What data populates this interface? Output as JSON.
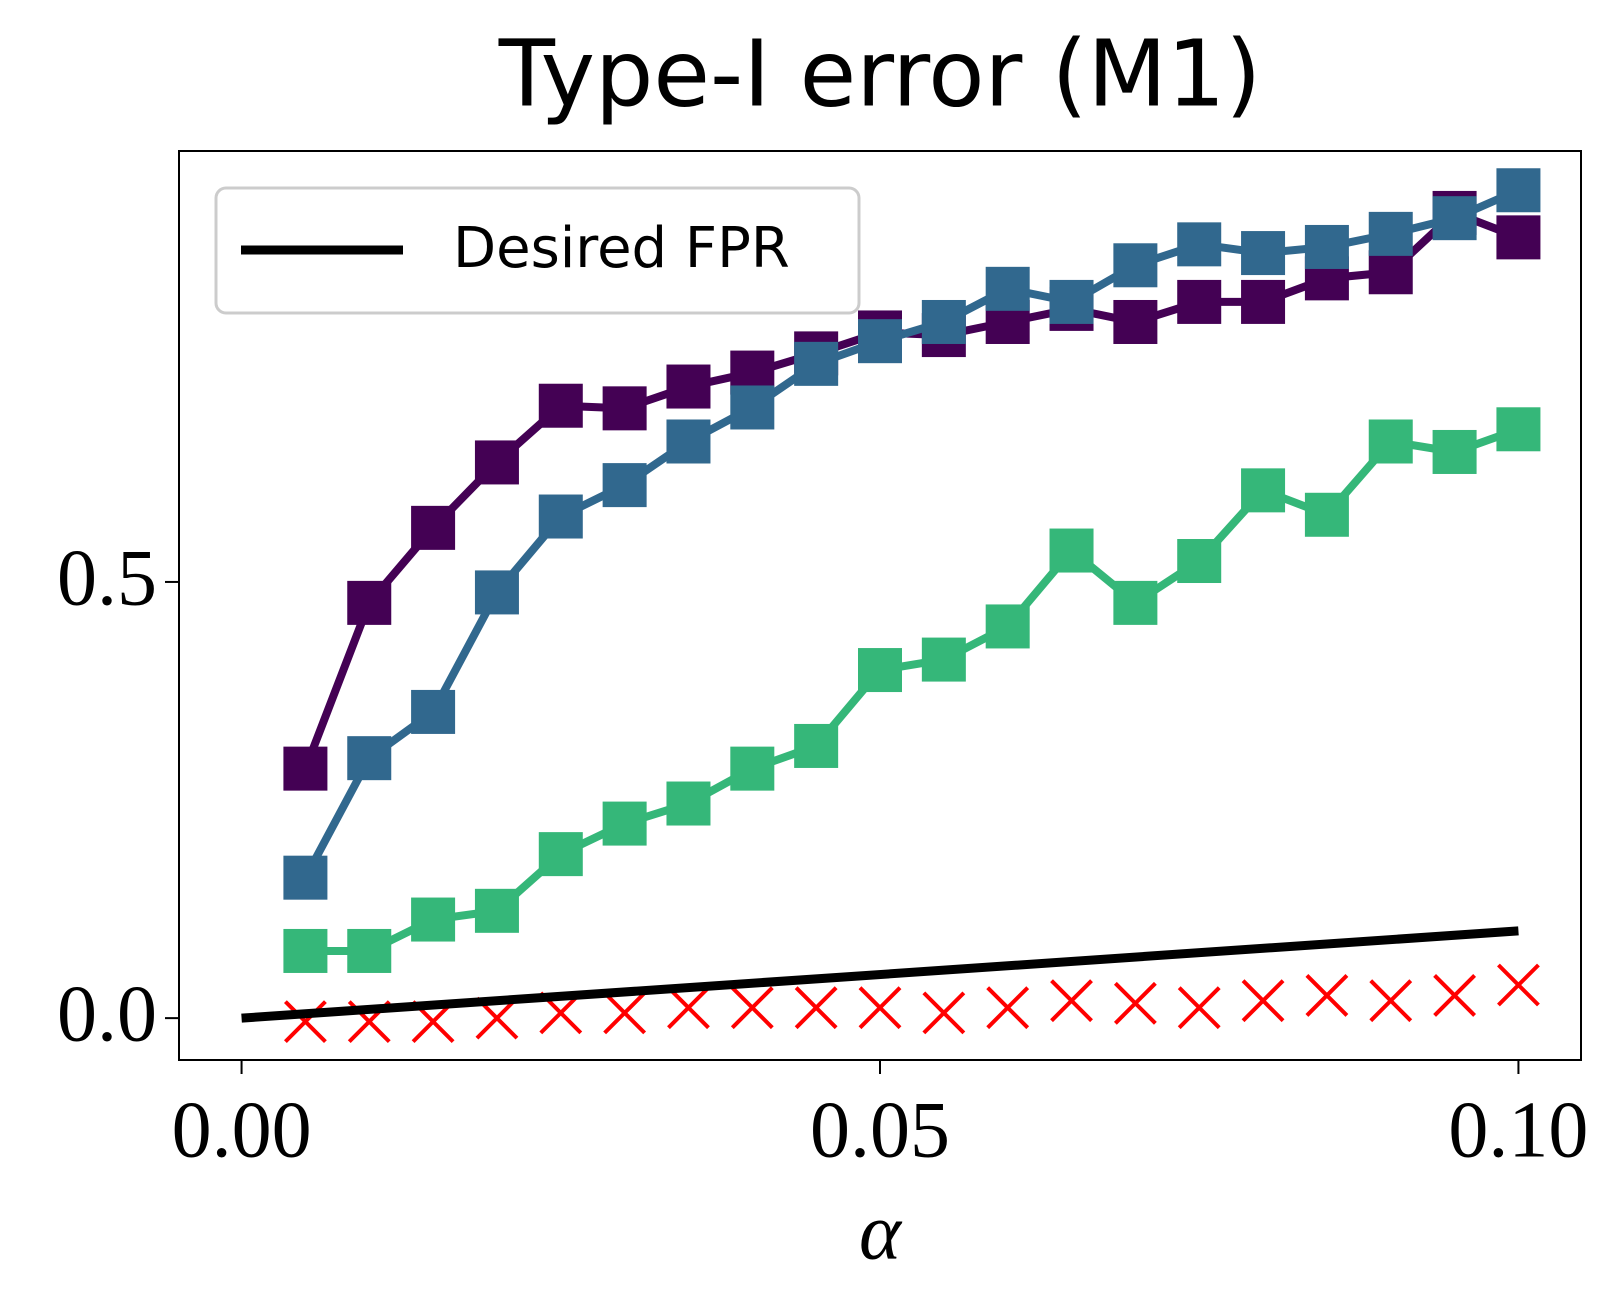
{
  "chart_data": {
    "type": "line",
    "title": "Type-I error (M1)",
    "xlabel": "α",
    "x": [
      0.005,
      0.01,
      0.015,
      0.02,
      0.025,
      0.03,
      0.035,
      0.04,
      0.045,
      0.05,
      0.055,
      0.06,
      0.065,
      0.07,
      0.075,
      0.08,
      0.085,
      0.09,
      0.095,
      0.1
    ],
    "series": [
      {
        "color": "#440154",
        "marker": "square",
        "line": true,
        "values": [
          0.286,
          0.476,
          0.562,
          0.637,
          0.702,
          0.699,
          0.724,
          0.74,
          0.762,
          0.786,
          0.783,
          0.798,
          0.813,
          0.798,
          0.821,
          0.821,
          0.848,
          0.855,
          0.923,
          0.895
        ]
      },
      {
        "color": "#31688e",
        "marker": "square",
        "line": true,
        "values": [
          0.161,
          0.298,
          0.351,
          0.488,
          0.575,
          0.611,
          0.661,
          0.7,
          0.75,
          0.776,
          0.798,
          0.836,
          0.821,
          0.863,
          0.887,
          0.877,
          0.884,
          0.899,
          0.917,
          0.949
        ]
      },
      {
        "color": "#35b779",
        "marker": "square",
        "line": true,
        "values": [
          0.077,
          0.077,
          0.113,
          0.123,
          0.188,
          0.223,
          0.246,
          0.286,
          0.312,
          0.399,
          0.411,
          0.449,
          0.536,
          0.476,
          0.524,
          0.605,
          0.577,
          0.661,
          0.649,
          0.675
        ]
      },
      {
        "color": "#ff0000",
        "marker": "x",
        "line": false,
        "values": [
          -0.004,
          -0.004,
          -0.004,
          0,
          0.006,
          0.006,
          0.012,
          0.012,
          0.012,
          0.012,
          0.006,
          0.012,
          0.02,
          0.017,
          0.012,
          0.02,
          0.026,
          0.02,
          0.026,
          0.038
        ]
      },
      {
        "name": "Desired FPR",
        "color": "#000000",
        "marker": "none",
        "line": true,
        "x": [
          0,
          0.1
        ],
        "values": [
          0,
          0.1
        ]
      }
    ],
    "xlim": [
      -0.0049,
      0.1049
    ],
    "ylim": [
      -0.048,
      0.994
    ],
    "xticks": [
      {
        "value": 0,
        "label": "0.00"
      },
      {
        "value": 0.05,
        "label": "0.05"
      },
      {
        "value": 0.1,
        "label": "0.10"
      }
    ],
    "yticks": [
      {
        "value": 0,
        "label": "0.0"
      },
      {
        "value": 0.5,
        "label": "0.5"
      }
    ],
    "legend": "upper left",
    "grid": false
  }
}
